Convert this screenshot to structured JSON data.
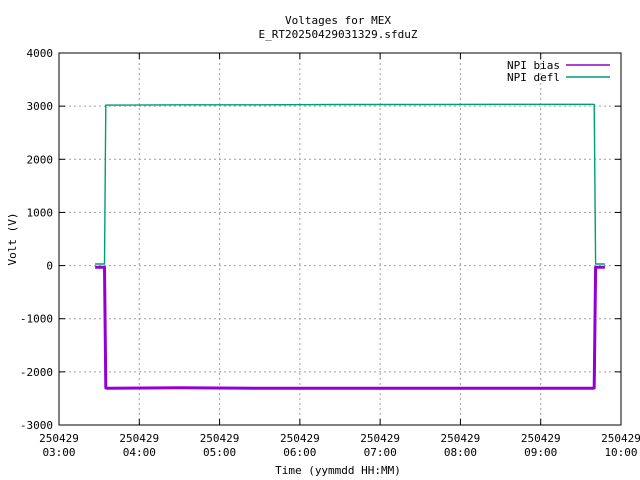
{
  "chart_data": {
    "type": "line",
    "title": "Voltages for MEX",
    "subtitle": "E_RT20250429031329.sfduZ",
    "xlabel": "Time (yymmdd HH:MM)",
    "ylabel": "Volt (V)",
    "xlim": [
      "2025-04-29 03:00",
      "2025-04-29 10:00"
    ],
    "ylim": [
      -3000,
      4000
    ],
    "yticks": [
      -3000,
      -2000,
      -1000,
      0,
      1000,
      2000,
      3000,
      4000
    ],
    "ytick_labels": [
      "-3000",
      "-2000",
      "-1000",
      "0",
      "1000",
      "2000",
      "3000",
      "4000"
    ],
    "xticks": [
      {
        "t": "2025-04-29 03:00",
        "date": "250429",
        "time": "03:00"
      },
      {
        "t": "2025-04-29 04:00",
        "date": "250429",
        "time": "04:00"
      },
      {
        "t": "2025-04-29 05:00",
        "date": "250429",
        "time": "05:00"
      },
      {
        "t": "2025-04-29 06:00",
        "date": "250429",
        "time": "06:00"
      },
      {
        "t": "2025-04-29 07:00",
        "date": "250429",
        "time": "07:00"
      },
      {
        "t": "2025-04-29 08:00",
        "date": "250429",
        "time": "08:00"
      },
      {
        "t": "2025-04-29 09:00",
        "date": "250429",
        "time": "09:00"
      },
      {
        "t": "2025-04-29 10:00",
        "date": "250429",
        "time": "10:00"
      }
    ],
    "grid": true,
    "legend_position": "top-right",
    "series": [
      {
        "name": "NPI bias",
        "color": "#9400d3",
        "x": [
          "2025-04-29 03:27",
          "2025-04-29 03:34",
          "2025-04-29 03:35",
          "2025-04-29 03:36",
          "2025-04-29 04:30",
          "2025-04-29 05:30",
          "2025-04-29 06:30",
          "2025-04-29 07:30",
          "2025-04-29 08:30",
          "2025-04-29 09:30",
          "2025-04-29 09:39",
          "2025-04-29 09:40",
          "2025-04-29 09:41",
          "2025-04-29 09:48"
        ],
        "y": [
          -30,
          -30,
          -2300,
          -2310,
          -2300,
          -2310,
          -2310,
          -2310,
          -2310,
          -2310,
          -2310,
          -2300,
          -30,
          -30
        ]
      },
      {
        "name": "NPI defl",
        "color": "#009e73",
        "x": [
          "2025-04-29 03:27",
          "2025-04-29 03:34",
          "2025-04-29 03:35",
          "2025-04-29 03:36",
          "2025-04-29 04:30",
          "2025-04-29 05:30",
          "2025-04-29 06:30",
          "2025-04-29 07:30",
          "2025-04-29 08:30",
          "2025-04-29 09:30",
          "2025-04-29 09:39",
          "2025-04-29 09:40",
          "2025-04-29 09:41",
          "2025-04-29 09:48"
        ],
        "y": [
          30,
          30,
          3020,
          3020,
          3025,
          3025,
          3030,
          3030,
          3035,
          3035,
          3035,
          3030,
          30,
          30
        ]
      }
    ]
  }
}
